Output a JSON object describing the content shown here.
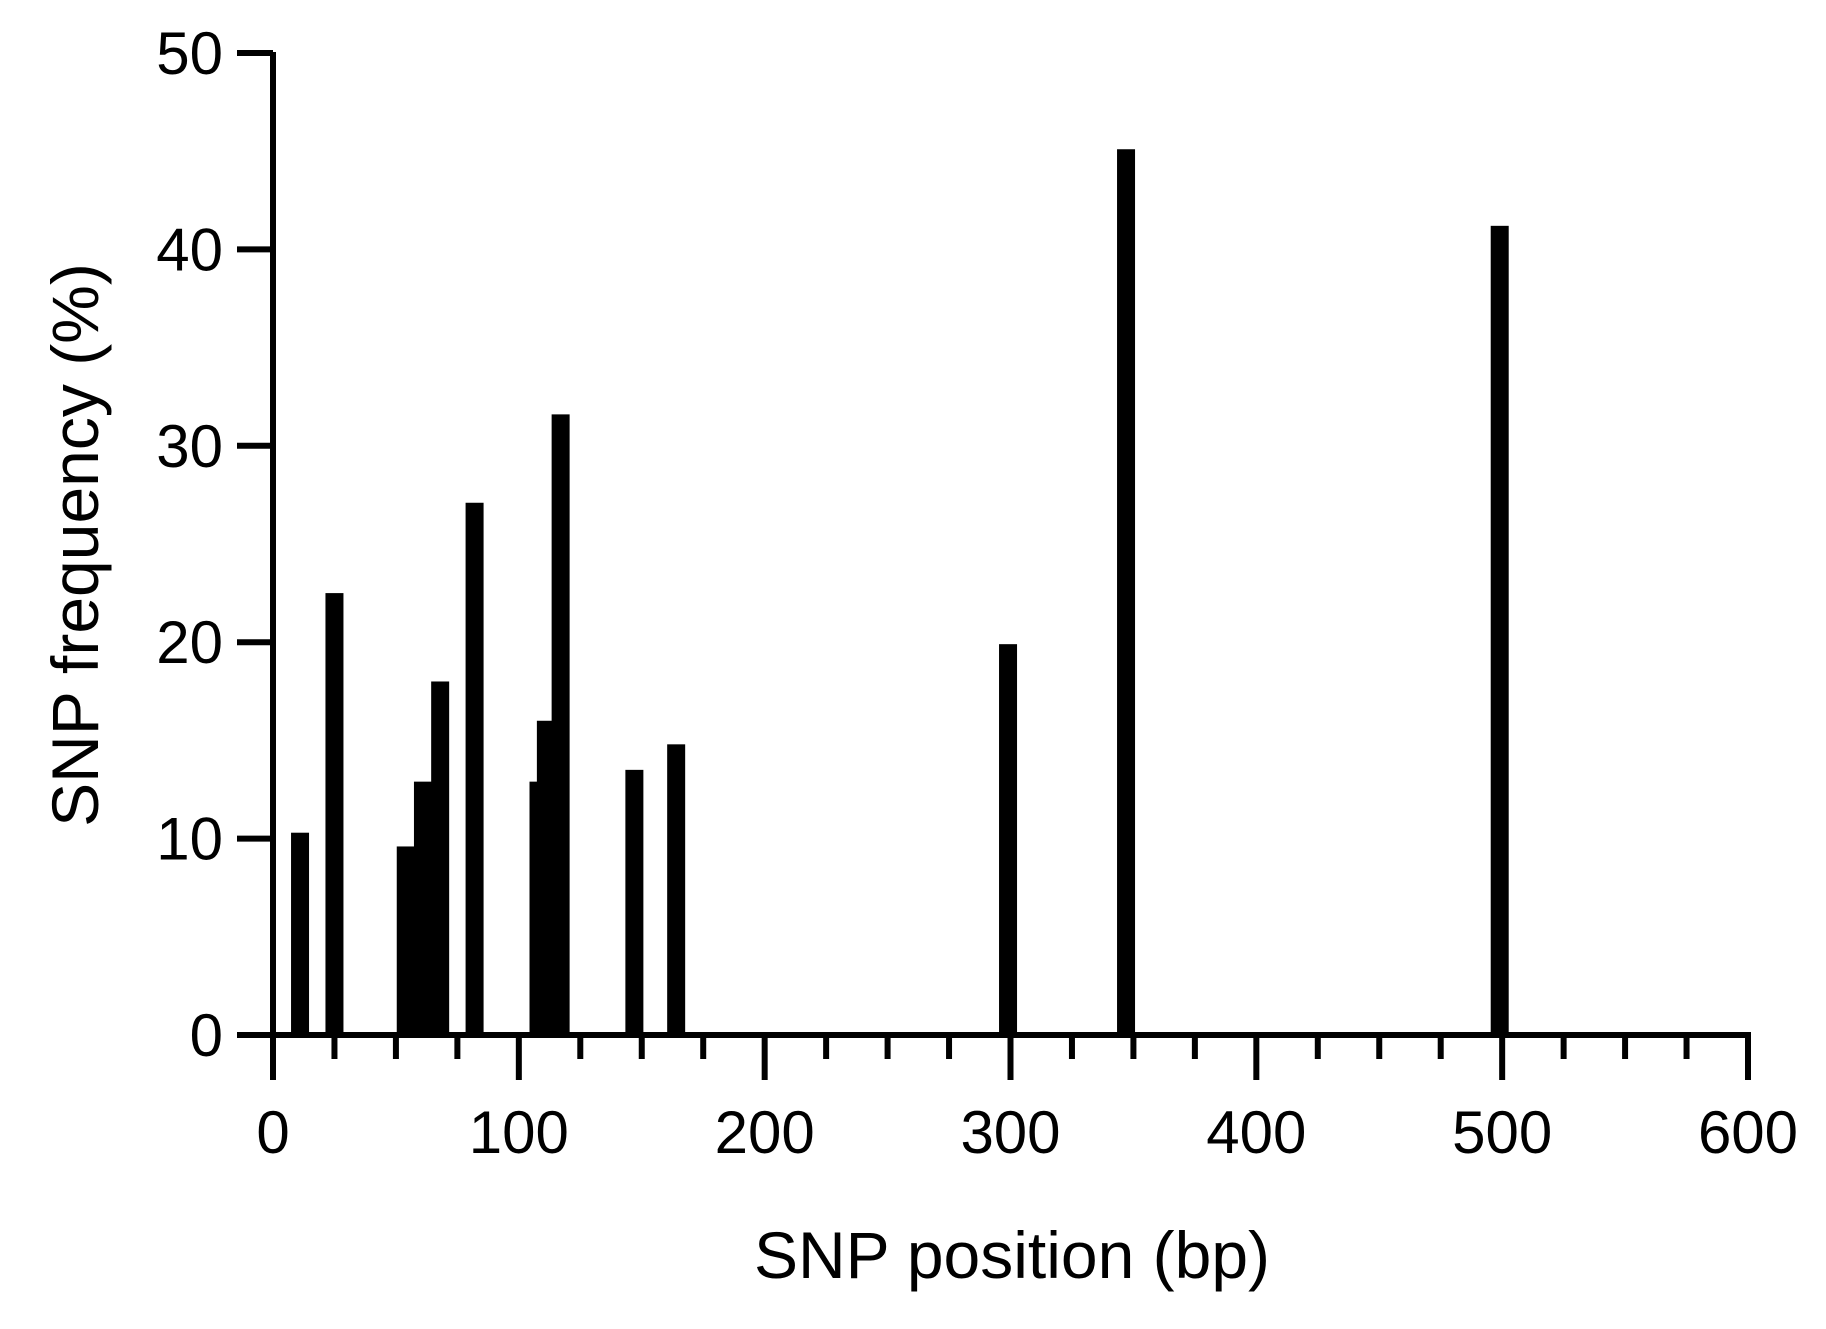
{
  "chart_data": {
    "type": "bar",
    "title": "",
    "xlabel": "SNP position (bp)",
    "ylabel": "SNP frequency (%)",
    "xlim": [
      0,
      600
    ],
    "ylim": [
      0,
      50
    ],
    "x_ticks": [
      "0",
      "100",
      "200",
      "300",
      "400",
      "500",
      "600"
    ],
    "y_ticks": [
      "0",
      "10",
      "20",
      "30",
      "40",
      "50"
    ],
    "grid": false,
    "bar_color": "#000000",
    "points": [
      {
        "x": 11,
        "y": 10.3
      },
      {
        "x": 25,
        "y": 22.5
      },
      {
        "x": 54,
        "y": 9.6
      },
      {
        "x": 61,
        "y": 12.9
      },
      {
        "x": 68,
        "y": 18.0
      },
      {
        "x": 82,
        "y": 27.1
      },
      {
        "x": 108,
        "y": 12.9
      },
      {
        "x": 111,
        "y": 16.0
      },
      {
        "x": 117,
        "y": 31.6
      },
      {
        "x": 147,
        "y": 13.5
      },
      {
        "x": 164,
        "y": 14.8
      },
      {
        "x": 299,
        "y": 19.9
      },
      {
        "x": 347,
        "y": 45.1
      },
      {
        "x": 499,
        "y": 41.2
      }
    ]
  }
}
